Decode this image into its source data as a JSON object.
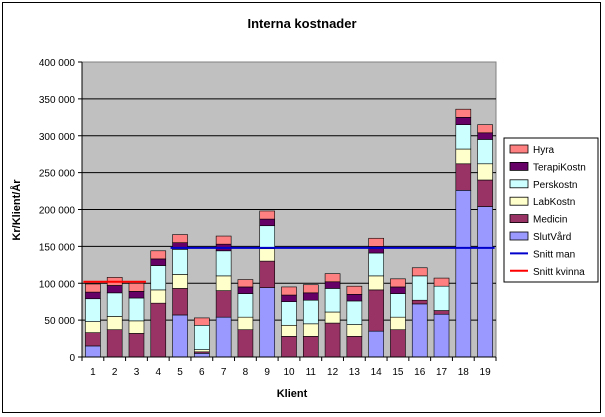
{
  "chart_data": {
    "type": "bar",
    "stacked": true,
    "title": "Interna kostnader",
    "xlabel": "Klient",
    "ylabel": "Kr/Klient/År",
    "ylim": [
      0,
      400000
    ],
    "ytick_step": 50000,
    "ytick_labels": [
      "0",
      "50 000",
      "100 000",
      "150 000",
      "200 000",
      "250 000",
      "300 000",
      "350 000",
      "400 000"
    ],
    "grid": true,
    "legend_position": "right",
    "categories": [
      "1",
      "2",
      "3",
      "4",
      "5",
      "6",
      "7",
      "8",
      "9",
      "10",
      "11",
      "12",
      "13",
      "14",
      "15",
      "16",
      "17",
      "18",
      "19"
    ],
    "series": [
      {
        "name": "SlutVård",
        "color": "#9999ff",
        "values": [
          15000,
          0,
          0,
          0,
          57000,
          5000,
          54000,
          0,
          94000,
          0,
          0,
          0,
          0,
          35000,
          0,
          72000,
          58000,
          226000,
          204000
        ]
      },
      {
        "name": "Medicin",
        "color": "#993366",
        "values": [
          18000,
          37000,
          32000,
          73000,
          36000,
          2000,
          36000,
          37000,
          36000,
          28000,
          28000,
          46000,
          28000,
          56000,
          37000,
          5000,
          5000,
          36000,
          36000
        ]
      },
      {
        "name": "LabKostn",
        "color": "#ffffcc",
        "values": [
          15000,
          18000,
          17000,
          18000,
          19000,
          3000,
          20000,
          17000,
          17000,
          15000,
          17000,
          15000,
          16000,
          19000,
          17000,
          0,
          0,
          20000,
          22000
        ]
      },
      {
        "name": "Perskostn",
        "color": "#ccffff",
        "values": [
          31000,
          32000,
          31000,
          33000,
          34000,
          33000,
          34000,
          32000,
          31000,
          32000,
          32000,
          32000,
          32000,
          31000,
          32000,
          33000,
          33000,
          33000,
          33000
        ]
      },
      {
        "name": "TerapiKostn",
        "color": "#660066",
        "values": [
          9000,
          10000,
          9000,
          9000,
          9000,
          0,
          9000,
          9000,
          9000,
          9000,
          10000,
          9000,
          9000,
          9000,
          9000,
          0,
          0,
          10000,
          9000
        ]
      },
      {
        "name": "Hyra",
        "color": "#ff8080",
        "values": [
          11000,
          11000,
          11000,
          11000,
          11000,
          10000,
          11000,
          10000,
          11000,
          11000,
          11000,
          11000,
          11000,
          11000,
          11000,
          11000,
          11000,
          11000,
          11000
        ]
      }
    ],
    "lines": [
      {
        "name": "Snitt man",
        "color": "#0000cc",
        "value": 148000,
        "from": 5,
        "to": 19
      },
      {
        "name": "Snitt kvinna",
        "color": "#ff0000",
        "value": 102000,
        "from": 1,
        "to": 3
      }
    ]
  }
}
